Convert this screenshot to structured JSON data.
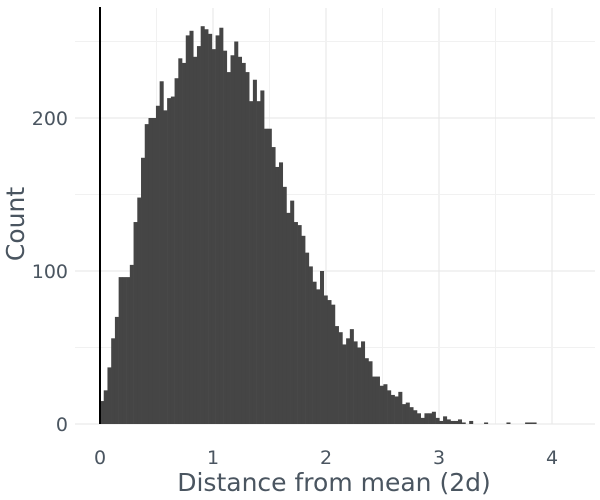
{
  "chart_data": {
    "type": "bar",
    "xlabel": "Distance from mean (2d)",
    "ylabel": "Count",
    "xlim": [
      -0.1,
      4.3
    ],
    "ylim": [
      0,
      270
    ],
    "x_ticks": [
      0,
      1,
      2,
      3,
      4
    ],
    "x_tick_labels": [
      "0",
      "1",
      "2",
      "3",
      "4"
    ],
    "y_ticks": [
      0,
      100,
      200
    ],
    "y_tick_labels": [
      "0",
      "100",
      "200"
    ],
    "grid": true,
    "vline_x": 0,
    "bin_width": 0.033,
    "bin_start": 0.0,
    "values": [
      15,
      22,
      37,
      56,
      70,
      96,
      96,
      96,
      104,
      132,
      148,
      174,
      196,
      200,
      200,
      208,
      224,
      205,
      213,
      214,
      226,
      239,
      236,
      254,
      257,
      240,
      247,
      260,
      258,
      255,
      245,
      254,
      259,
      244,
      230,
      241,
      250,
      240,
      236,
      230,
      211,
      225,
      211,
      218,
      193,
      193,
      181,
      168,
      171,
      155,
      138,
      146,
      132,
      130,
      123,
      112,
      103,
      93,
      88,
      100,
      84,
      81,
      78,
      64,
      60,
      52,
      56,
      62,
      54,
      50,
      54,
      43,
      41,
      31,
      31,
      25,
      26,
      22,
      19,
      18,
      21,
      13,
      14,
      11,
      9,
      7,
      4,
      7,
      7,
      8,
      4,
      2,
      5,
      3,
      2,
      2,
      3,
      1,
      0,
      2,
      0,
      0,
      0,
      1,
      0,
      0,
      0,
      0,
      0,
      1,
      0,
      0,
      0,
      0,
      1,
      1,
      1
    ]
  }
}
